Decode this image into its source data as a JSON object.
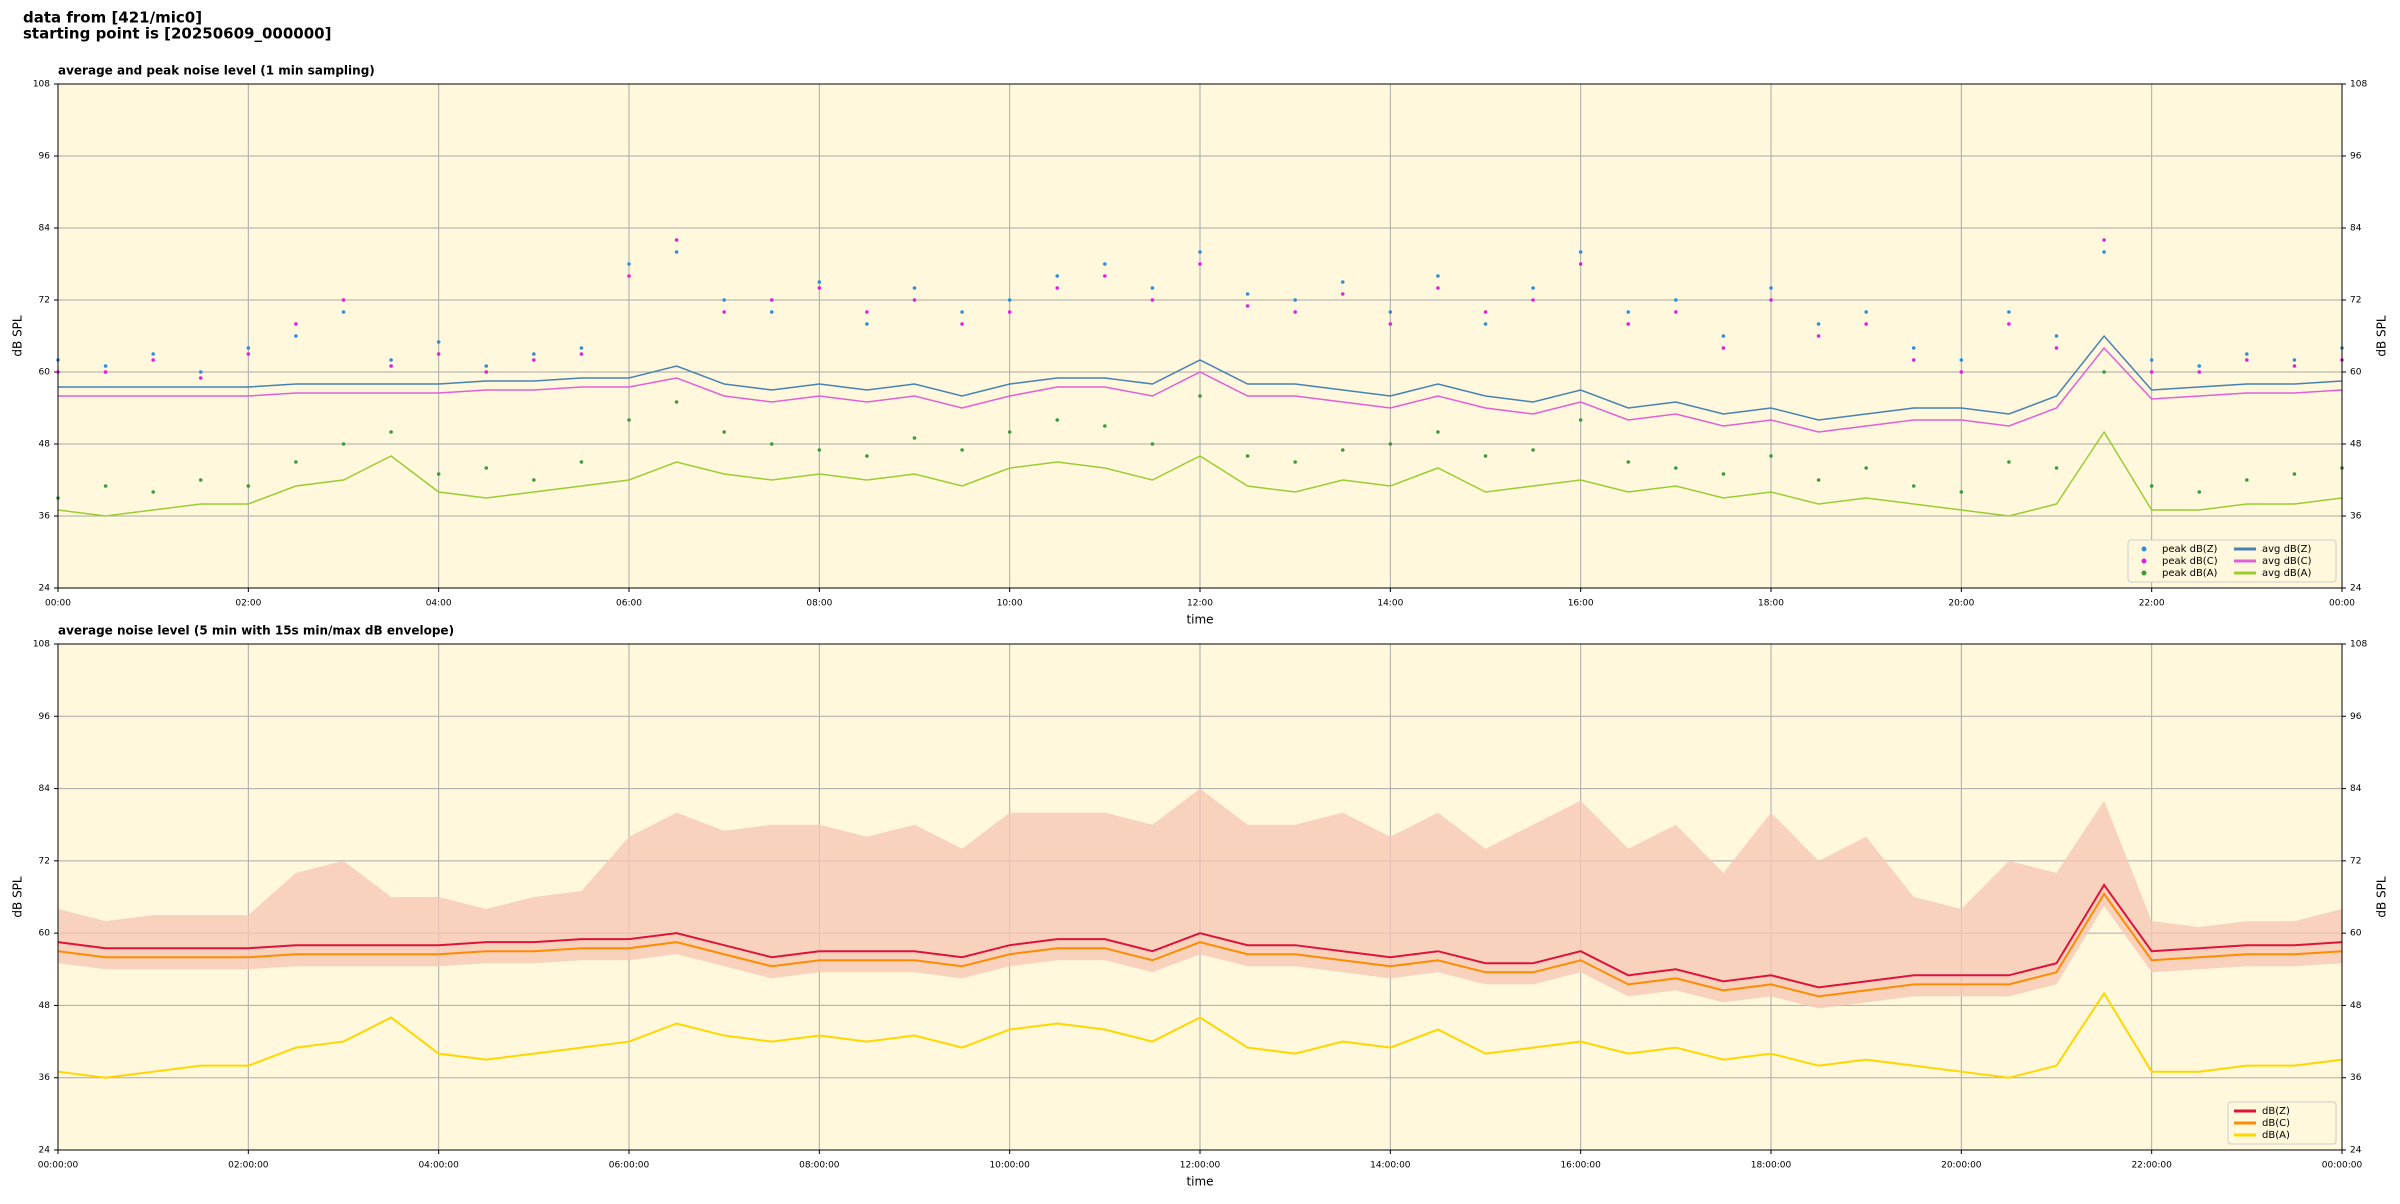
{
  "header": [
    "data from [421/mic0]",
    "starting point is [20250609_000000]"
  ],
  "chart_data": [
    {
      "type": "line",
      "title": "average and peak noise level (1 min sampling)",
      "x_label": "time",
      "y_label": "dB SPL",
      "background": "#fff8dc",
      "grid": true,
      "legend": "lower right",
      "legend_columns": 2,
      "xlim": [
        0,
        1440
      ],
      "ylim": [
        24,
        108
      ],
      "yticks": [
        24,
        36,
        48,
        60,
        72,
        84,
        96,
        108
      ],
      "xticks": [
        {
          "value": 0,
          "label": "00:00"
        },
        {
          "value": 120,
          "label": "02:00"
        },
        {
          "value": 240,
          "label": "04:00"
        },
        {
          "value": 360,
          "label": "06:00"
        },
        {
          "value": 480,
          "label": "08:00"
        },
        {
          "value": 600,
          "label": "10:00"
        },
        {
          "value": 720,
          "label": "12:00"
        },
        {
          "value": 840,
          "label": "14:00"
        },
        {
          "value": 960,
          "label": "16:00"
        },
        {
          "value": 1080,
          "label": "18:00"
        },
        {
          "value": 1200,
          "label": "20:00"
        },
        {
          "value": 1320,
          "label": "22:00"
        },
        {
          "value": 1440,
          "label": "00:00"
        }
      ],
      "x": [
        0,
        30,
        60,
        90,
        120,
        150,
        180,
        210,
        240,
        270,
        300,
        330,
        360,
        390,
        420,
        450,
        480,
        510,
        540,
        570,
        600,
        630,
        660,
        690,
        720,
        750,
        780,
        810,
        840,
        870,
        900,
        930,
        960,
        990,
        1020,
        1050,
        1080,
        1110,
        1140,
        1170,
        1200,
        1230,
        1260,
        1290,
        1320,
        1350,
        1380,
        1410,
        1440
      ],
      "series": [
        {
          "name": "peak dB(Z)",
          "color": "#2f8fd8",
          "style": "scatter",
          "values": [
            62,
            61,
            63,
            60,
            64,
            66,
            70,
            62,
            65,
            61,
            63,
            64,
            78,
            80,
            72,
            70,
            75,
            68,
            74,
            70,
            72,
            76,
            78,
            74,
            80,
            73,
            72,
            75,
            70,
            76,
            68,
            74,
            80,
            70,
            72,
            66,
            74,
            68,
            70,
            64,
            62,
            70,
            66,
            80,
            62,
            61,
            63,
            62,
            64
          ]
        },
        {
          "name": "peak dB(C)",
          "color": "#e020e0",
          "style": "scatter",
          "values": [
            60,
            60,
            62,
            59,
            63,
            68,
            72,
            61,
            63,
            60,
            62,
            63,
            76,
            82,
            70,
            72,
            74,
            70,
            72,
            68,
            70,
            74,
            76,
            72,
            78,
            71,
            70,
            73,
            68,
            74,
            70,
            72,
            78,
            68,
            70,
            64,
            72,
            66,
            68,
            62,
            60,
            68,
            64,
            82,
            60,
            60,
            62,
            61,
            62
          ]
        },
        {
          "name": "peak dB(A)",
          "color": "#3c9c3c",
          "style": "scatter",
          "values": [
            39,
            41,
            40,
            42,
            41,
            45,
            48,
            50,
            43,
            44,
            42,
            45,
            52,
            55,
            50,
            48,
            47,
            46,
            49,
            47,
            50,
            52,
            51,
            48,
            56,
            46,
            45,
            47,
            48,
            50,
            46,
            47,
            52,
            45,
            44,
            43,
            46,
            42,
            44,
            41,
            40,
            45,
            44,
            60,
            41,
            40,
            42,
            43,
            44
          ]
        },
        {
          "name": "avg dB(Z)",
          "color": "#4682b4",
          "style": "line",
          "values": [
            57.5,
            57.5,
            57.5,
            57.5,
            57.5,
            58,
            58,
            58,
            58,
            58.5,
            58.5,
            59,
            59,
            61,
            58,
            57,
            58,
            57,
            58,
            56,
            58,
            59,
            59,
            58,
            62,
            58,
            58,
            57,
            56,
            58,
            56,
            55,
            57,
            54,
            55,
            53,
            54,
            52,
            53,
            54,
            54,
            53,
            56,
            66,
            57,
            57.5,
            58,
            58,
            58.5
          ]
        },
        {
          "name": "avg dB(C)",
          "color": "#e060d8",
          "style": "line",
          "values": [
            56,
            56,
            56,
            56,
            56,
            56.5,
            56.5,
            56.5,
            56.5,
            57,
            57,
            57.5,
            57.5,
            59,
            56,
            55,
            56,
            55,
            56,
            54,
            56,
            57.5,
            57.5,
            56,
            60,
            56,
            56,
            55,
            54,
            56,
            54,
            53,
            55,
            52,
            53,
            51,
            52,
            50,
            51,
            52,
            52,
            51,
            54,
            64,
            55.5,
            56,
            56.5,
            56.5,
            57
          ]
        },
        {
          "name": "avg dB(A)",
          "color": "#9acd32",
          "style": "line",
          "values": [
            37,
            36,
            37,
            38,
            38,
            41,
            42,
            46,
            40,
            39,
            40,
            41,
            42,
            45,
            43,
            42,
            43,
            42,
            43,
            41,
            44,
            45,
            44,
            42,
            46,
            41,
            40,
            42,
            41,
            44,
            40,
            41,
            42,
            40,
            41,
            39,
            40,
            38,
            39,
            38,
            37,
            36,
            38,
            50,
            37,
            37,
            38,
            38,
            39
          ]
        }
      ]
    },
    {
      "type": "line",
      "title": "average noise level (5 min with 15s min/max dB envelope)",
      "x_label": "time",
      "y_label": "dB SPL",
      "background": "#fff8dc",
      "grid": true,
      "legend": "lower right",
      "legend_columns": 1,
      "xlim": [
        0,
        1440
      ],
      "ylim": [
        24,
        108
      ],
      "yticks": [
        24,
        36,
        48,
        60,
        72,
        84,
        96,
        108
      ],
      "xticks": [
        {
          "value": 0,
          "label": "00:00:00"
        },
        {
          "value": 120,
          "label": "02:00:00"
        },
        {
          "value": 240,
          "label": "04:00:00"
        },
        {
          "value": 360,
          "label": "06:00:00"
        },
        {
          "value": 480,
          "label": "08:00:00"
        },
        {
          "value": 600,
          "label": "10:00:00"
        },
        {
          "value": 720,
          "label": "12:00:00"
        },
        {
          "value": 840,
          "label": "14:00:00"
        },
        {
          "value": 960,
          "label": "16:00:00"
        },
        {
          "value": 1080,
          "label": "18:00:00"
        },
        {
          "value": 1200,
          "label": "20:00:00"
        },
        {
          "value": 1320,
          "label": "22:00:00"
        },
        {
          "value": 1440,
          "label": "00:00:00"
        }
      ],
      "x": [
        0,
        30,
        60,
        90,
        120,
        150,
        180,
        210,
        240,
        270,
        300,
        330,
        360,
        390,
        420,
        450,
        480,
        510,
        540,
        570,
        600,
        630,
        660,
        690,
        720,
        750,
        780,
        810,
        840,
        870,
        900,
        930,
        960,
        990,
        1020,
        1050,
        1080,
        1110,
        1140,
        1170,
        1200,
        1230,
        1260,
        1290,
        1320,
        1350,
        1380,
        1410,
        1440
      ],
      "envelope": {
        "color": "#f7c6b4",
        "max": [
          64,
          62,
          63,
          63,
          63,
          70,
          72,
          66,
          66,
          64,
          66,
          67,
          76,
          80,
          77,
          78,
          78,
          76,
          78,
          74,
          80,
          80,
          80,
          78,
          84,
          78,
          78,
          80,
          76,
          80,
          74,
          78,
          82,
          74,
          78,
          70,
          80,
          72,
          76,
          66,
          64,
          72,
          70,
          82,
          62,
          61,
          62,
          62,
          64
        ],
        "min": [
          55,
          54,
          54,
          54,
          54,
          54.5,
          54.5,
          54.5,
          54.5,
          55,
          55,
          55.5,
          55.5,
          56.5,
          54.5,
          52.5,
          53.5,
          53.5,
          53.5,
          52.5,
          54.5,
          55.5,
          55.5,
          53.5,
          56.5,
          54.5,
          54.5,
          53.5,
          52.5,
          53.5,
          51.5,
          51.5,
          53.5,
          49.5,
          50.5,
          48.5,
          49.5,
          47.5,
          48.5,
          49.5,
          49.5,
          49.5,
          51.5,
          64.5,
          53.5,
          54,
          54.5,
          54.5,
          55
        ]
      },
      "series": [
        {
          "name": "dB(Z)",
          "color": "#dc143c",
          "values": [
            58.5,
            57.5,
            57.5,
            57.5,
            57.5,
            58,
            58,
            58,
            58,
            58.5,
            58.5,
            59,
            59,
            60,
            58,
            56,
            57,
            57,
            57,
            56,
            58,
            59,
            59,
            57,
            60,
            58,
            58,
            57,
            56,
            57,
            55,
            55,
            57,
            53,
            54,
            52,
            53,
            51,
            52,
            53,
            53,
            53,
            55,
            68,
            57,
            57.5,
            58,
            58,
            58.5
          ]
        },
        {
          "name": "dB(C)",
          "color": "#ff8c00",
          "values": [
            57,
            56,
            56,
            56,
            56,
            56.5,
            56.5,
            56.5,
            56.5,
            57,
            57,
            57.5,
            57.5,
            58.5,
            56.5,
            54.5,
            55.5,
            55.5,
            55.5,
            54.5,
            56.5,
            57.5,
            57.5,
            55.5,
            58.5,
            56.5,
            56.5,
            55.5,
            54.5,
            55.5,
            53.5,
            53.5,
            55.5,
            51.5,
            52.5,
            50.5,
            51.5,
            49.5,
            50.5,
            51.5,
            51.5,
            51.5,
            53.5,
            66.5,
            55.5,
            56,
            56.5,
            56.5,
            57
          ]
        },
        {
          "name": "dB(A)",
          "color": "#ffd700",
          "values": [
            37,
            36,
            37,
            38,
            38,
            41,
            42,
            46,
            40,
            39,
            40,
            41,
            42,
            45,
            43,
            42,
            43,
            42,
            43,
            41,
            44,
            45,
            44,
            42,
            46,
            41,
            40,
            42,
            41,
            44,
            40,
            41,
            42,
            40,
            41,
            39,
            40,
            38,
            39,
            38,
            37,
            36,
            38,
            50,
            37,
            37,
            38,
            38,
            39
          ]
        }
      ]
    }
  ]
}
